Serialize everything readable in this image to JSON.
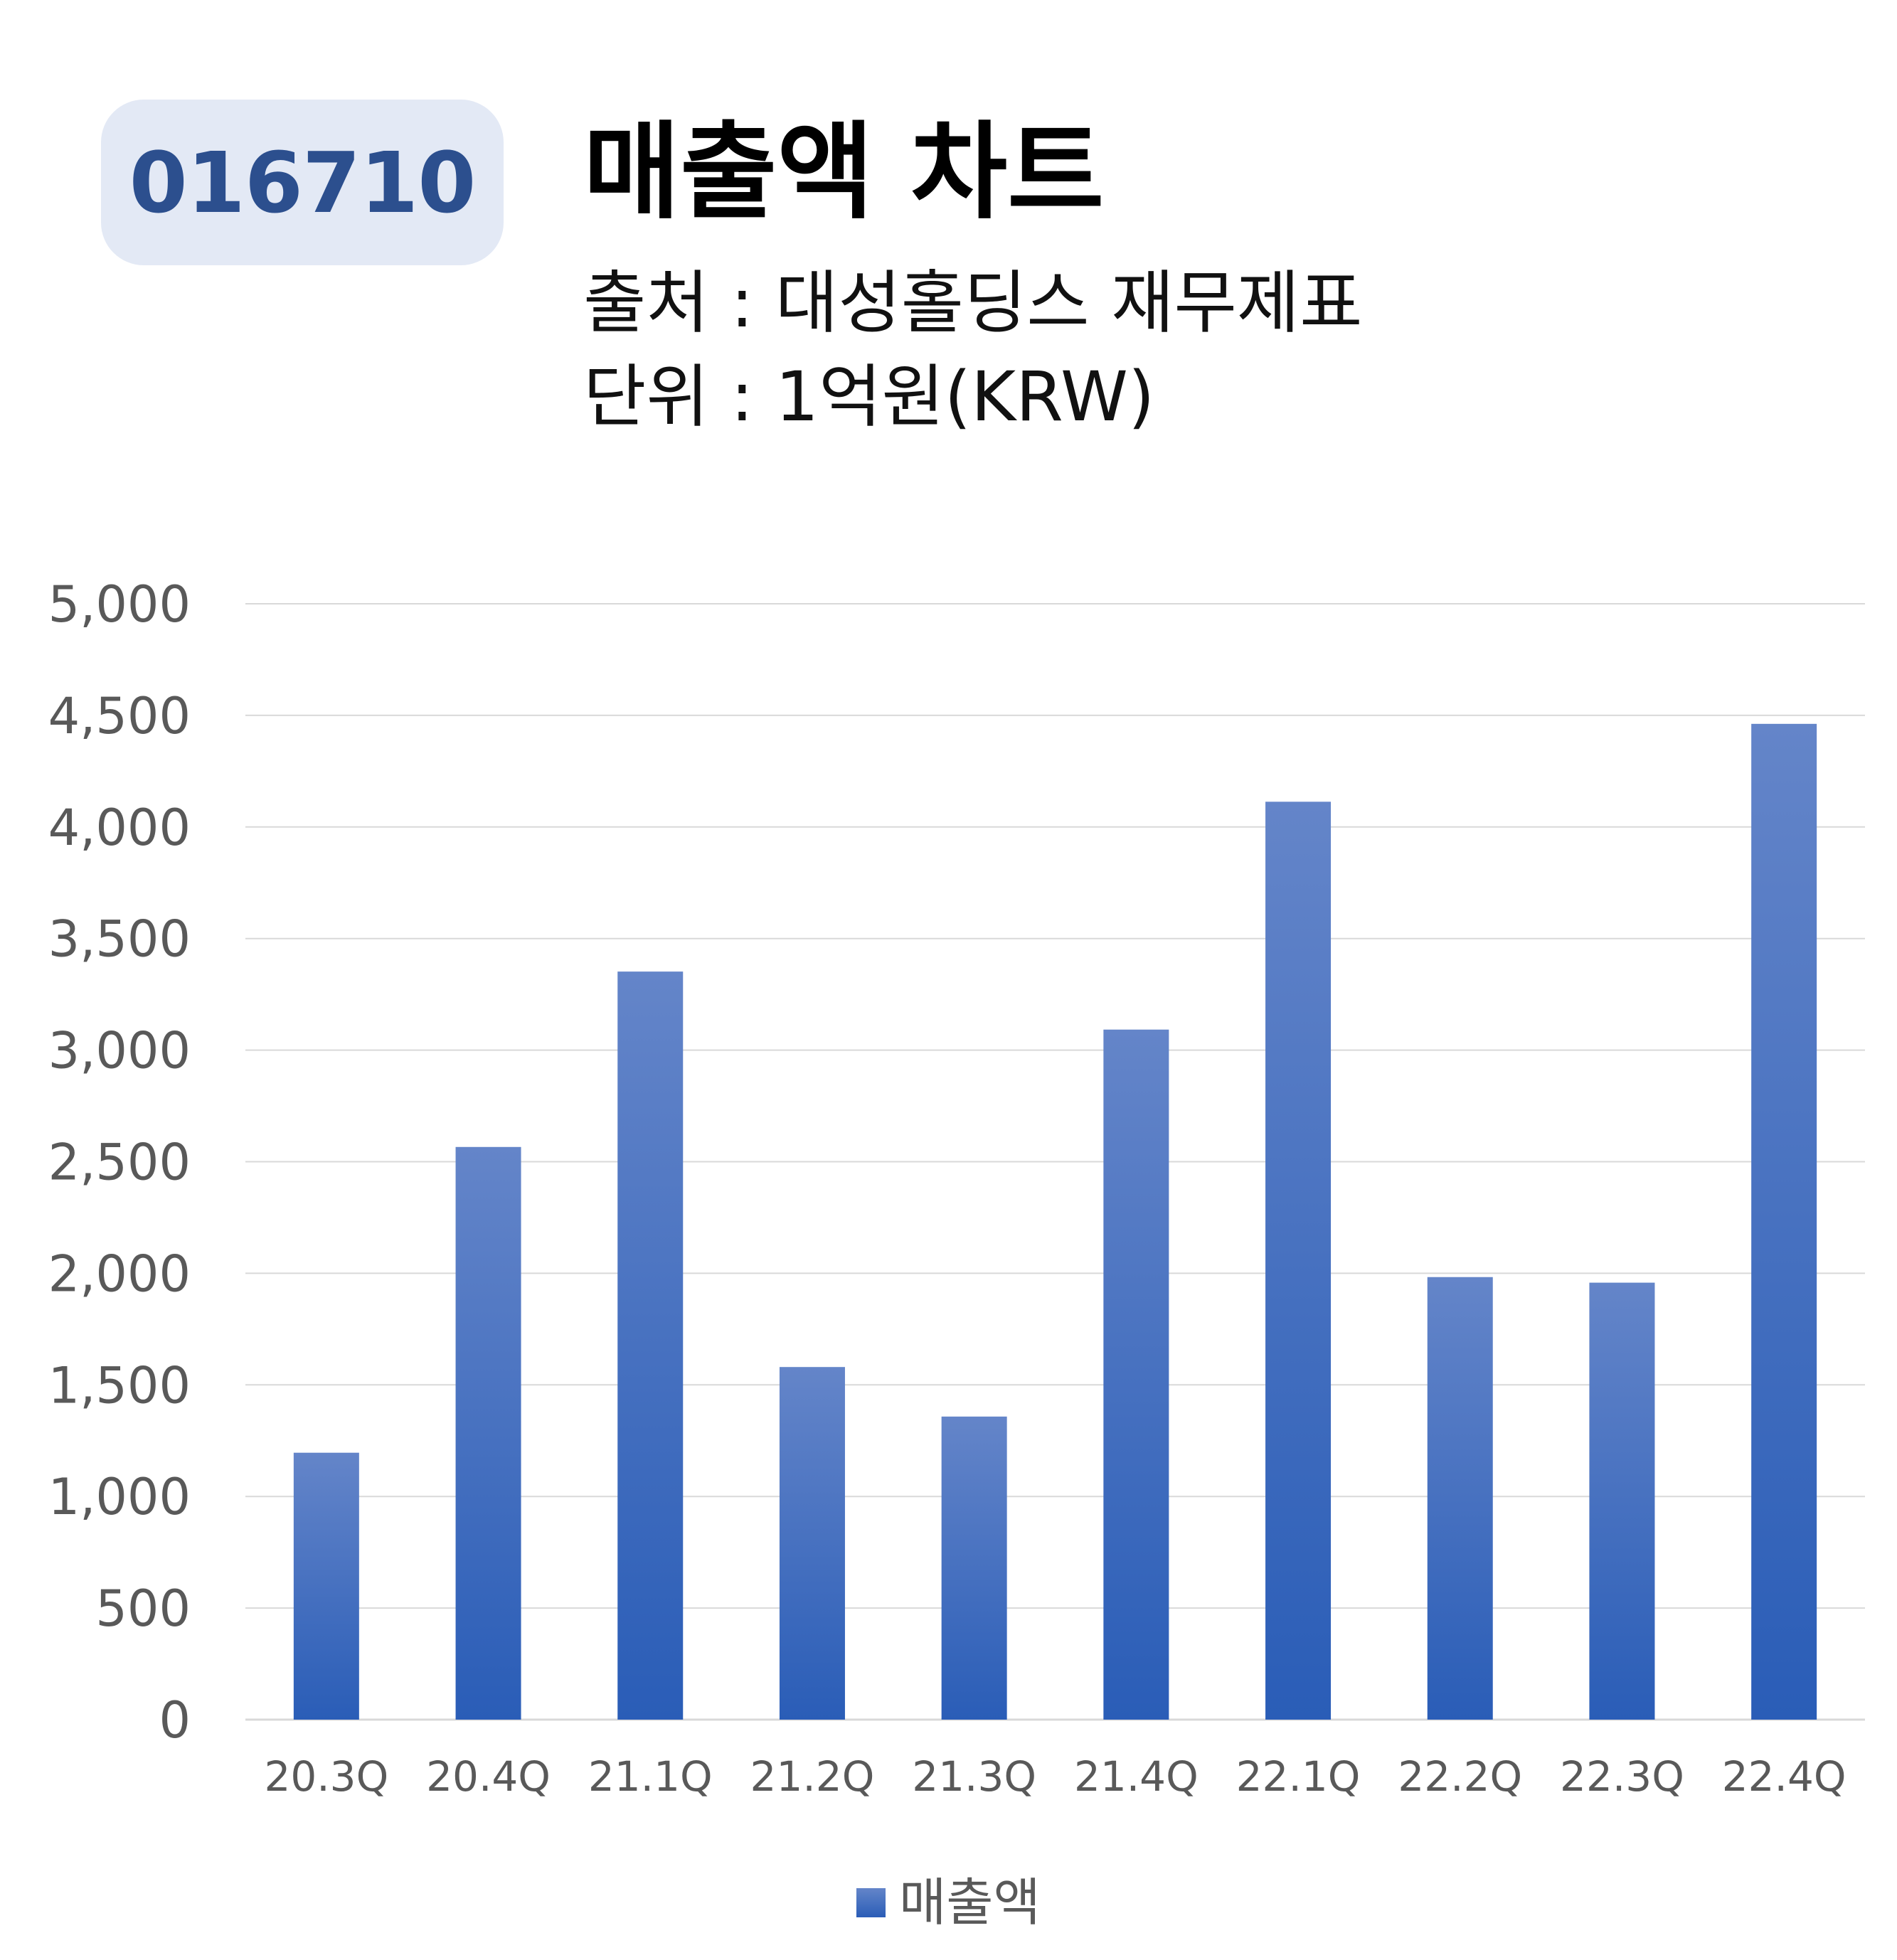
{
  "header": {
    "code": "016710",
    "title": "매출액 차트",
    "source": "출처 : 대성홀딩스 재무제표",
    "unit": "단위 : 1억원(KRW)"
  },
  "chart_data": {
    "type": "bar",
    "categories": [
      "20.3Q",
      "20.4Q",
      "21.1Q",
      "21.2Q",
      "21.3Q",
      "21.4Q",
      "22.1Q",
      "22.2Q",
      "22.3Q",
      "22.4Q"
    ],
    "series": [
      {
        "name": "매출액",
        "values": [
          1196,
          2566,
          3352,
          1580,
          1358,
          3092,
          4113,
          1983,
          1958,
          4462
        ]
      }
    ],
    "ylim": [
      0,
      5000
    ],
    "yticks": [
      0,
      500,
      1000,
      1500,
      2000,
      2500,
      3000,
      3500,
      4000,
      4500,
      5000
    ],
    "ytick_labels": [
      "0",
      "500",
      "1,000",
      "1,500",
      "2,000",
      "2,500",
      "3,000",
      "3,500",
      "4,000",
      "4,500",
      "5,000"
    ],
    "grid": true,
    "legend_position": "bottom",
    "colors": {
      "bar_top": "#6485c9",
      "bar_bottom": "#2a5db7",
      "grid": "#d9d9d9"
    }
  }
}
